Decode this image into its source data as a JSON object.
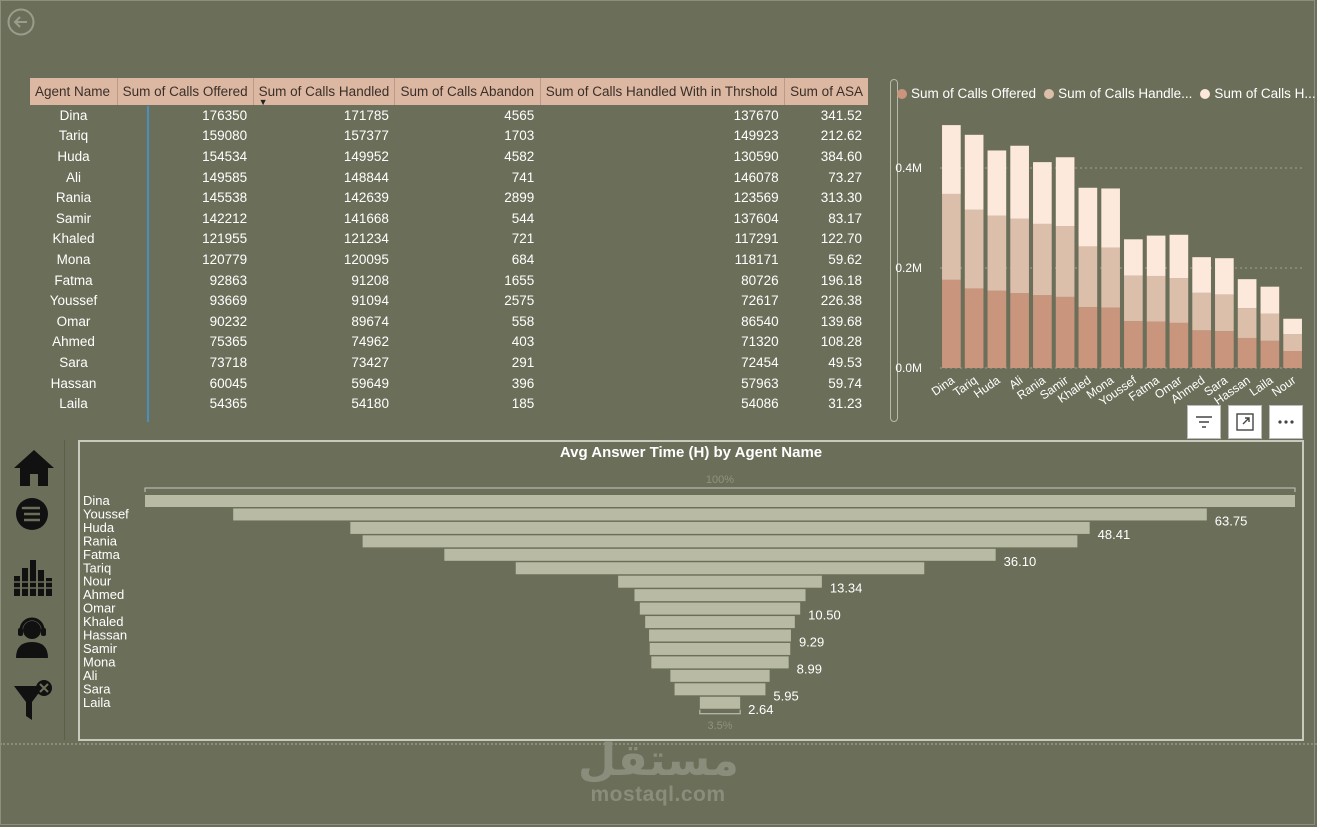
{
  "table": {
    "columns": [
      "Agent Name",
      "Sum of Calls Offered",
      "Sum of Calls Handled",
      "Sum of Calls Abandon",
      "Sum of Calls Handled With in Thrshold",
      "Sum of ASA"
    ],
    "rows": [
      [
        "Dina",
        "176350",
        "171785",
        "4565",
        "137670",
        "341.52"
      ],
      [
        "Tariq",
        "159080",
        "157377",
        "1703",
        "149923",
        "212.62"
      ],
      [
        "Huda",
        "154534",
        "149952",
        "4582",
        "130590",
        "384.60"
      ],
      [
        "Ali",
        "149585",
        "148844",
        "741",
        "146078",
        "73.27"
      ],
      [
        "Rania",
        "145538",
        "142639",
        "2899",
        "123569",
        "313.30"
      ],
      [
        "Samir",
        "142212",
        "141668",
        "544",
        "137604",
        "83.17"
      ],
      [
        "Khaled",
        "121955",
        "121234",
        "721",
        "117291",
        "122.70"
      ],
      [
        "Mona",
        "120779",
        "120095",
        "684",
        "118171",
        "59.62"
      ],
      [
        "Fatma",
        "92863",
        "91208",
        "1655",
        "80726",
        "196.18"
      ],
      [
        "Youssef",
        "93669",
        "91094",
        "2575",
        "72617",
        "226.38"
      ],
      [
        "Omar",
        "90232",
        "89674",
        "558",
        "86540",
        "139.68"
      ],
      [
        "Ahmed",
        "75365",
        "74962",
        "403",
        "71320",
        "108.28"
      ],
      [
        "Sara",
        "73718",
        "73427",
        "291",
        "72454",
        "49.53"
      ],
      [
        "Hassan",
        "60045",
        "59649",
        "396",
        "57963",
        "59.74"
      ],
      [
        "Laila",
        "54365",
        "54180",
        "185",
        "54086",
        "31.23"
      ]
    ]
  },
  "legend": [
    {
      "label": "Sum of Calls Offered",
      "color": "#c9957c"
    },
    {
      "label": "Sum of Calls Handle...",
      "color": "#dcbfaa"
    },
    {
      "label": "Sum of Calls H...",
      "color": "#fde9dc"
    }
  ],
  "chart_data": [
    {
      "type": "bar",
      "stacked": true,
      "categories": [
        "Dina",
        "Tariq",
        "Huda",
        "Ali",
        "Rania",
        "Samir",
        "Khaled",
        "Mona",
        "Youssef",
        "Fatma",
        "Omar",
        "Ahmed",
        "Sara",
        "Hassan",
        "Laila",
        "Nour"
      ],
      "series": [
        {
          "name": "Sum of Calls Offered",
          "color": "#c9957c",
          "values": [
            176350,
            159080,
            154534,
            149585,
            145538,
            142212,
            121955,
            120779,
            93669,
            92863,
            90232,
            75365,
            73718,
            60045,
            54365,
            34000
          ]
        },
        {
          "name": "Sum of Calls Handle...",
          "color": "#dcbfaa",
          "values": [
            171785,
            157377,
            149952,
            148844,
            142639,
            141668,
            121234,
            120095,
            91094,
            91208,
            89674,
            74962,
            73427,
            59649,
            54180,
            33500
          ]
        },
        {
          "name": "Sum of Calls H...",
          "color": "#fde9dc",
          "values": [
            137670,
            149923,
            130590,
            146078,
            123569,
            137604,
            117291,
            118171,
            72617,
            80726,
            86540,
            71320,
            72454,
            57963,
            54086,
            31000
          ]
        }
      ],
      "yticks": [
        "0.0M",
        "0.2M",
        "0.4M"
      ],
      "ylim": [
        0,
        500000
      ],
      "grid": true,
      "legend_position": "top"
    },
    {
      "type": "bar",
      "subtype": "funnel",
      "title": "Avg Answer Time (H) by Agent Name",
      "categories": [
        "Dina",
        "Youssef",
        "Huda",
        "Rania",
        "Fatma",
        "Tariq",
        "Nour",
        "Ahmed",
        "Omar",
        "Khaled",
        "Hassan",
        "Samir",
        "Mona",
        "Ali",
        "Sara",
        "Laila"
      ],
      "values": [
        75.3,
        63.75,
        48.41,
        46.8,
        36.1,
        26.75,
        13.34,
        11.2,
        10.5,
        9.8,
        9.29,
        9.2,
        8.99,
        6.5,
        5.95,
        2.64
      ],
      "value_labels": [
        "",
        "63.75",
        "48.41",
        "",
        "36.10",
        "",
        "13.34",
        "",
        "10.50",
        "",
        "9.29",
        "",
        "8.99",
        "",
        "5.95",
        "2.64"
      ],
      "top_label": "100%",
      "bottom_label": "3.5%",
      "color": "#b9baa4"
    }
  ],
  "sidebar": [
    "home-icon",
    "list-icon",
    "bar-chart-icon",
    "support-agent-icon",
    "clear-filter-icon"
  ],
  "watermark": {
    "arabic": "مستقل",
    "domain": "mostaql.com"
  }
}
